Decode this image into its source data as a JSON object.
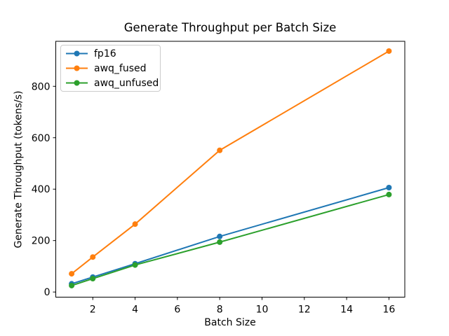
{
  "chart_data": {
    "type": "line",
    "title": "Generate Throughput per Batch Size",
    "xlabel": "Batch Size",
    "ylabel": "Generate Throughput (tokens/s)",
    "x": [
      1,
      2,
      4,
      8,
      16
    ],
    "series": [
      {
        "name": "fp16",
        "color": "#1f77b4",
        "values": [
          32,
          58,
          110,
          216,
          406
        ]
      },
      {
        "name": "awq_fused",
        "color": "#ff7f0e",
        "values": [
          71,
          136,
          264,
          551,
          937
        ]
      },
      {
        "name": "awq_unfused",
        "color": "#2ca02c",
        "values": [
          25,
          52,
          105,
          194,
          379
        ]
      }
    ],
    "xlim": [
      0.25,
      16.75
    ],
    "ylim": [
      -20,
      975
    ],
    "xticks": [
      2,
      4,
      6,
      8,
      10,
      12,
      14,
      16
    ],
    "yticks": [
      0,
      200,
      400,
      600,
      800
    ],
    "grid": false,
    "marker": "o",
    "legend_position": "upper left",
    "spine_color": "#000000",
    "text_color": "#000000"
  }
}
